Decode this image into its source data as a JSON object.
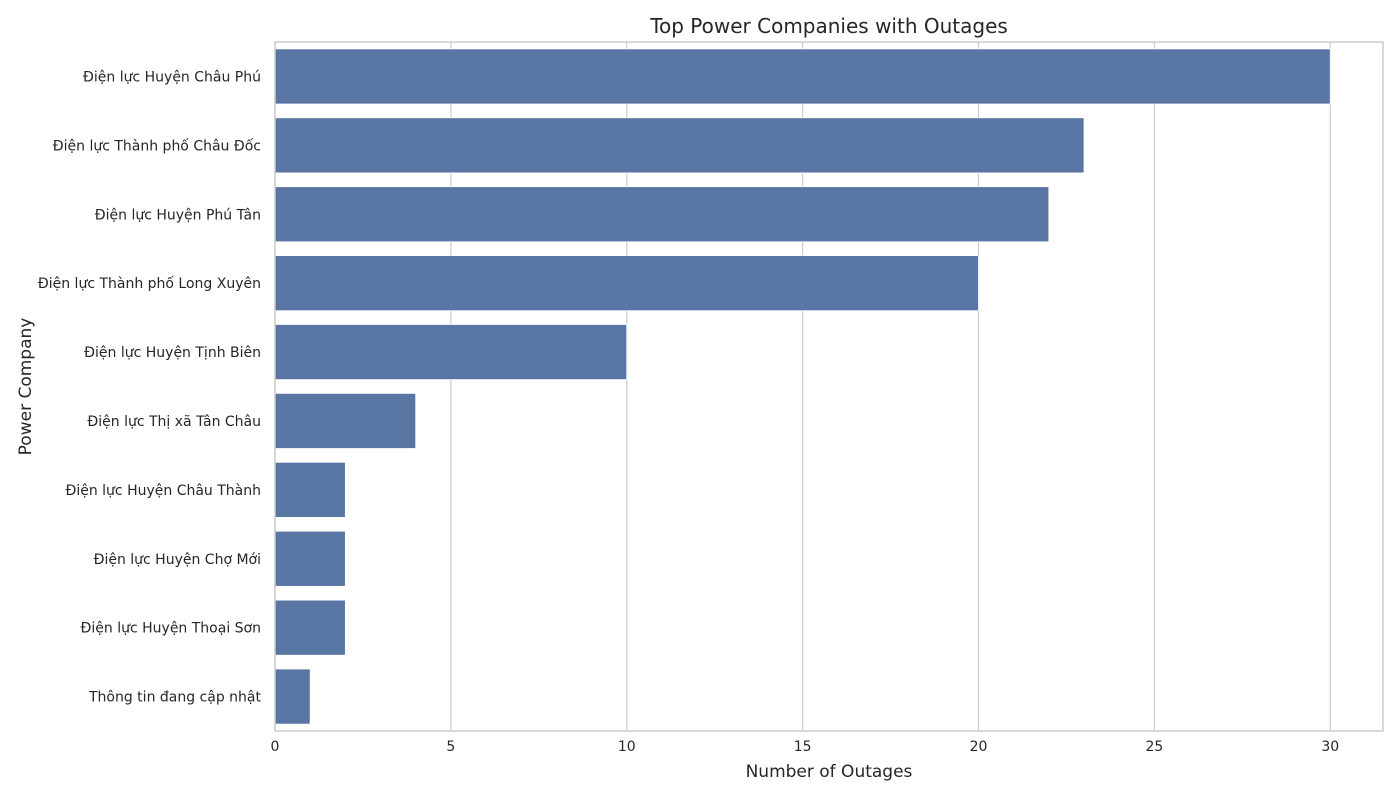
{
  "chart_data": {
    "type": "bar",
    "orientation": "horizontal",
    "title": "Top Power Companies with Outages",
    "xlabel": "Number of Outages",
    "ylabel": "Power Company",
    "categories": [
      "Điện lực Huyện Châu Phú",
      "Điện lực Thành phố Châu Đốc",
      "Điện lực Huyện Phú Tân",
      "Điện lực Thành phố Long Xuyên",
      "Điện lực Huyện Tịnh Biên",
      "Điện lực Thị xã Tân Châu",
      "Điện lực Huyện Châu Thành",
      "Điện lực Huyện Chợ Mới",
      "Điện lực Huyện Thoại Sơn",
      "Thông tin đang cập nhật"
    ],
    "values": [
      30,
      23,
      22,
      20,
      10,
      4,
      2,
      2,
      2,
      1
    ],
    "xlim": [
      0,
      31.5
    ],
    "xticks": [
      0,
      5,
      10,
      15,
      20,
      25,
      30
    ],
    "grid": true,
    "bar_color": "#5875a4",
    "grid_color": "#cccccc"
  }
}
